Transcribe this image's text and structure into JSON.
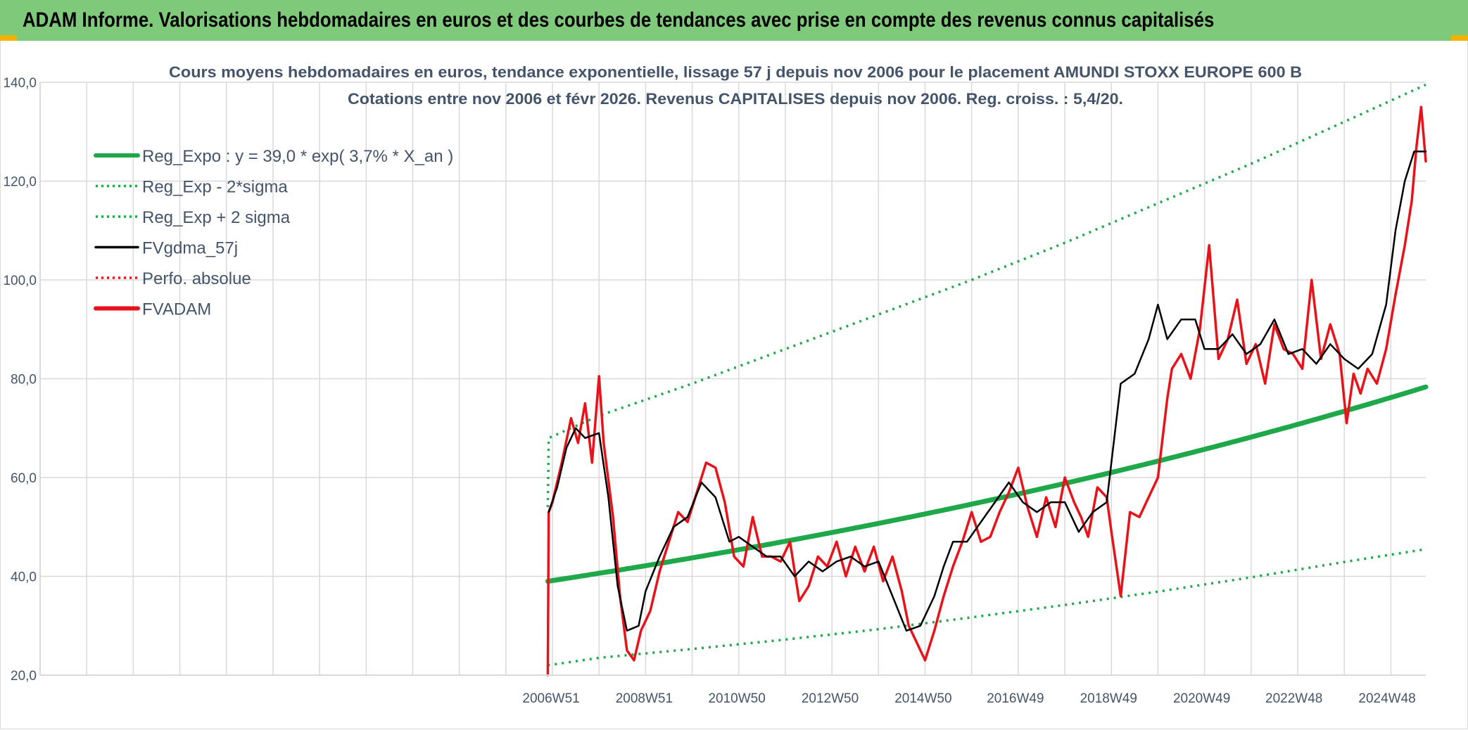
{
  "banner": {
    "title": "ADAM Informe. Valorisations hebdomadaires en euros et des courbes de tendances avec prise en compte des revenus connus capitalisés"
  },
  "colors": {
    "banner_bg": "#7fc97a",
    "accent_corner": "#f0b400",
    "reg_expo": "#1fa84a",
    "sigma_bands": "#1fa84a",
    "fvgdma": "#000000",
    "perfo_absolue": "#e8131a",
    "fvadam": "#e8131a",
    "grid": "#d9d9d9",
    "text": "#44546a"
  },
  "chart_data": {
    "type": "line",
    "title_line1": "Cours moyens hebdomadaires en euros, tendance exponentielle, lissage 57 j depuis nov 2006 pour le placement AMUNDI STOXX EUROPE 600 B",
    "title_line2": "Cotations entre nov 2006 et févr 2026. Revenus CAPITALISES depuis nov 2006. Reg. croiss. : 5,4/20.",
    "xlabel": "",
    "ylabel": "",
    "ylim": [
      20,
      140
    ],
    "yticks": [
      "20,0",
      "40,0",
      "60,0",
      "80,0",
      "100,0",
      "120,0",
      "140,0"
    ],
    "x_tick_labels": [
      "2006W51",
      "2008W51",
      "2010W50",
      "2012W50",
      "2014W50",
      "2016W49",
      "2018W49",
      "2020W49",
      "2022W48",
      "2024W48"
    ],
    "x_tick_years": [
      2006.97,
      2008.97,
      2010.96,
      2012.96,
      2014.96,
      2016.94,
      2018.94,
      2020.94,
      2022.92,
      2024.92
    ],
    "xlim": [
      1996.0,
      2025.75
    ],
    "grid": true,
    "legend_position": "top-left",
    "legend": [
      {
        "label": "Reg_Expo : y = 39,0 * exp( 3,7% *  X_an )",
        "style": "solid-thick",
        "color": "#1fa84a"
      },
      {
        "label": "Reg_Exp - 2*sigma",
        "style": "dotted",
        "color": "#1fa84a"
      },
      {
        "label": "Reg_Exp + 2 sigma",
        "style": "dotted",
        "color": "#1fa84a"
      },
      {
        "label": "FVgdma_57j",
        "style": "solid",
        "color": "#000000"
      },
      {
        "label": "Perfo. absolue",
        "style": "dotted",
        "color": "#e8131a"
      },
      {
        "label": "FVADAM",
        "style": "solid-thick",
        "color": "#e8131a"
      }
    ],
    "series": [
      {
        "name": "Reg_Expo : y = 39,0 * exp( 3,7% *  X_an )",
        "x": [
          2006.9,
          2008.0,
          2010.0,
          2012.0,
          2014.0,
          2016.0,
          2018.0,
          2020.0,
          2022.0,
          2024.0,
          2025.75
        ],
        "y": [
          39.0,
          40.6,
          43.8,
          47.2,
          50.9,
          54.9,
          59.2,
          63.8,
          68.8,
          74.2,
          79.3
        ]
      },
      {
        "name": "Reg_Exp - 2*sigma",
        "x": [
          2006.9,
          2008.0,
          2010.0,
          2012.0,
          2014.0,
          2016.0,
          2018.0,
          2020.0,
          2022.0,
          2024.0,
          2025.75
        ],
        "y": [
          22.0,
          23.5,
          25.3,
          27.2,
          29.3,
          31.7,
          34.2,
          36.9,
          39.8,
          42.9,
          45.5
        ]
      },
      {
        "name": "Reg_Exp + 2 sigma",
        "x": [
          2006.9,
          2006.92,
          2008.0,
          2010.0,
          2012.0,
          2014.0,
          2016.0,
          2018.0,
          2020.0,
          2022.0,
          2024.0,
          2025.75
        ],
        "y": [
          54.0,
          68.0,
          72.5,
          79.0,
          86.0,
          93.0,
          100.0,
          107.5,
          115.5,
          123.5,
          132.0,
          139.5
        ]
      },
      {
        "name": "FVgdma_57j",
        "x": [
          2006.92,
          2007.1,
          2007.3,
          2007.5,
          2007.7,
          2008.0,
          2008.2,
          2008.4,
          2008.6,
          2008.85,
          2009.0,
          2009.3,
          2009.6,
          2009.9,
          2010.2,
          2010.5,
          2010.8,
          2011.0,
          2011.3,
          2011.6,
          2011.9,
          2012.2,
          2012.5,
          2012.8,
          2013.1,
          2013.4,
          2013.7,
          2014.0,
          2014.3,
          2014.6,
          2014.9,
          2015.2,
          2015.4,
          2015.6,
          2015.9,
          2016.2,
          2016.5,
          2016.8,
          2017.1,
          2017.4,
          2017.7,
          2018.0,
          2018.3,
          2018.6,
          2018.9,
          2019.2,
          2019.5,
          2019.8,
          2020.0,
          2020.2,
          2020.5,
          2020.8,
          2021.0,
          2021.3,
          2021.6,
          2021.9,
          2022.2,
          2022.5,
          2022.8,
          2023.1,
          2023.4,
          2023.7,
          2024.0,
          2024.3,
          2024.6,
          2024.9,
          2025.1,
          2025.3,
          2025.5,
          2025.75
        ],
        "y": [
          53.0,
          58.0,
          66.0,
          70.0,
          68.0,
          69.0,
          56.0,
          38.0,
          29.0,
          30.0,
          37.0,
          44.0,
          50.0,
          52.0,
          59.0,
          56.0,
          47.0,
          48.0,
          46.0,
          44.0,
          44.0,
          40.0,
          43.0,
          41.0,
          43.0,
          44.0,
          42.0,
          43.0,
          36.0,
          29.0,
          30.0,
          36.0,
          42.0,
          47.0,
          47.0,
          51.0,
          55.0,
          59.0,
          55.0,
          53.0,
          55.0,
          55.0,
          49.0,
          53.0,
          55.0,
          79.0,
          81.0,
          88.0,
          95.0,
          88.0,
          92.0,
          92.0,
          86.0,
          86.0,
          89.0,
          85.0,
          87.0,
          92.0,
          85.0,
          86.0,
          83.0,
          87.0,
          84.0,
          82.0,
          85.0,
          95.0,
          110.0,
          120.0,
          126.0,
          126.0
        ]
      },
      {
        "name": "FVADAM",
        "x": [
          2006.9,
          2006.92,
          2007.0,
          2007.2,
          2007.4,
          2007.55,
          2007.7,
          2007.85,
          2008.0,
          2008.1,
          2008.3,
          2008.45,
          2008.6,
          2008.75,
          2008.9,
          2009.1,
          2009.3,
          2009.5,
          2009.7,
          2009.9,
          2010.1,
          2010.3,
          2010.5,
          2010.7,
          2010.9,
          2011.1,
          2011.3,
          2011.5,
          2011.7,
          2011.9,
          2012.1,
          2012.3,
          2012.5,
          2012.7,
          2012.9,
          2013.1,
          2013.3,
          2013.5,
          2013.7,
          2013.9,
          2014.1,
          2014.3,
          2014.5,
          2014.65,
          2014.8,
          2015.0,
          2015.2,
          2015.4,
          2015.6,
          2015.8,
          2016.0,
          2016.2,
          2016.4,
          2016.6,
          2016.8,
          2017.0,
          2017.2,
          2017.4,
          2017.6,
          2017.8,
          2018.0,
          2018.2,
          2018.35,
          2018.5,
          2018.7,
          2018.9,
          2019.0,
          2019.2,
          2019.4,
          2019.6,
          2019.8,
          2020.0,
          2020.2,
          2020.3,
          2020.5,
          2020.7,
          2020.9,
          2021.1,
          2021.3,
          2021.5,
          2021.7,
          2021.9,
          2022.1,
          2022.3,
          2022.5,
          2022.7,
          2022.9,
          2023.1,
          2023.3,
          2023.5,
          2023.7,
          2023.9,
          2024.05,
          2024.2,
          2024.35,
          2024.5,
          2024.7,
          2024.9,
          2025.1,
          2025.3,
          2025.45,
          2025.55,
          2025.65,
          2025.75
        ],
        "y": [
          20.0,
          53.0,
          55.0,
          63.0,
          72.0,
          67.0,
          75.0,
          63.0,
          80.5,
          67.0,
          52.0,
          36.0,
          25.0,
          23.0,
          29.0,
          33.0,
          41.0,
          47.0,
          53.0,
          51.0,
          57.0,
          63.0,
          62.0,
          55.0,
          44.0,
          42.0,
          52.0,
          44.0,
          44.0,
          43.0,
          47.0,
          35.0,
          38.0,
          44.0,
          42.0,
          47.0,
          40.0,
          46.0,
          41.0,
          46.0,
          39.0,
          44.0,
          37.0,
          30.0,
          27.0,
          23.0,
          29.0,
          36.0,
          42.0,
          47.0,
          53.0,
          47.0,
          48.0,
          53.0,
          57.0,
          62.0,
          54.0,
          48.0,
          56.0,
          50.0,
          60.0,
          55.0,
          52.0,
          48.0,
          58.0,
          56.0,
          49.0,
          36.0,
          53.0,
          52.0,
          56.0,
          60.0,
          76.0,
          82.0,
          85.0,
          80.0,
          90.0,
          107.0,
          84.0,
          88.0,
          96.0,
          83.0,
          87.0,
          79.0,
          91.0,
          86.0,
          85.0,
          82.0,
          100.0,
          84.0,
          91.0,
          85.0,
          71.0,
          81.0,
          77.0,
          82.0,
          79.0,
          86.0,
          97.0,
          107.0,
          116.0,
          127.0,
          135.0,
          124.0
        ]
      }
    ]
  }
}
